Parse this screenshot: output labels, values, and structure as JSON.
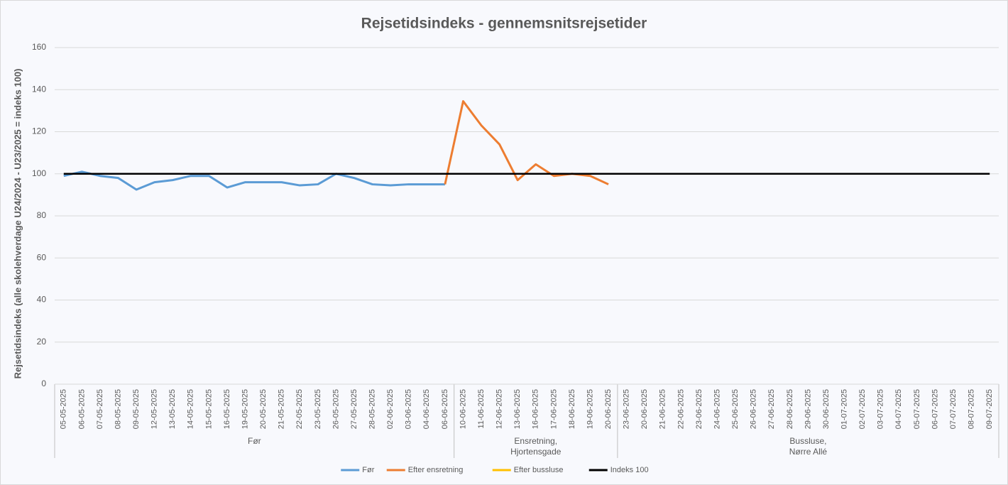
{
  "chart_data": {
    "type": "line",
    "title": "Rejsetidsindeks - gennemsnitsrejsetider",
    "y_label": "Rejsetidsindeks (alle skolehverdage U24/2024 - U23/2025 = indeks 100)",
    "categories": [
      "05-05-2025",
      "06-05-2025",
      "07-05-2025",
      "08-05-2025",
      "09-05-2025",
      "12-05-2025",
      "13-05-2025",
      "14-05-2025",
      "15-05-2025",
      "16-05-2025",
      "19-05-2025",
      "20-05-2025",
      "21-05-2025",
      "22-05-2025",
      "23-05-2025",
      "26-05-2025",
      "27-05-2025",
      "28-05-2025",
      "02-06-2025",
      "03-06-2025",
      "04-06-2025",
      "06-06-2025",
      "10-06-2025",
      "11-06-2025",
      "12-06-2025",
      "13-06-2025",
      "16-06-2025",
      "17-06-2025",
      "18-06-2025",
      "19-06-2025",
      "20-06-2025",
      "23-06-2025",
      "20-06-2025",
      "21-06-2025",
      "22-06-2025",
      "23-06-2025",
      "24-06-2025",
      "25-06-2025",
      "26-06-2025",
      "27-06-2025",
      "28-06-2025",
      "29-06-2025",
      "30-06-2025",
      "01-07-2025",
      "02-07-2025",
      "03-07-2025",
      "04-07-2025",
      "05-07-2025",
      "06-07-2025",
      "07-07-2025",
      "08-07-2025",
      "09-07-2025"
    ],
    "groups": [
      {
        "label": [
          "Før"
        ],
        "count": 22
      },
      {
        "label": [
          "Ensretning,",
          "Hjortensgade"
        ],
        "count": 9
      },
      {
        "label": [
          "Bussluse,",
          "Nørre Allé"
        ],
        "count": 21
      }
    ],
    "series": [
      {
        "name": "Før",
        "color": "#5b9bd5",
        "values": [
          99,
          101,
          99,
          98,
          92.5,
          96,
          97,
          99,
          99,
          93.5,
          96,
          96,
          96,
          94.5,
          95,
          100,
          98,
          95,
          94.5,
          95,
          95,
          95,
          null,
          null,
          null,
          null,
          null,
          null,
          null,
          null,
          null,
          null,
          null,
          null,
          null,
          null,
          null,
          null,
          null,
          null,
          null,
          null,
          null,
          null,
          null,
          null,
          null,
          null,
          null,
          null,
          null,
          null
        ]
      },
      {
        "name": "Efter ensretning",
        "color": "#ed7d31",
        "values": [
          null,
          null,
          null,
          null,
          null,
          null,
          null,
          null,
          null,
          null,
          null,
          null,
          null,
          null,
          null,
          null,
          null,
          null,
          null,
          null,
          null,
          95,
          134.5,
          123,
          114,
          97,
          104.5,
          99,
          100,
          99,
          95,
          null,
          null,
          null,
          null,
          null,
          null,
          null,
          null,
          null,
          null,
          null,
          null,
          null,
          null,
          null,
          null,
          null,
          null,
          null,
          null,
          null
        ]
      },
      {
        "name": "Efter bussluse",
        "color": "#ffc000",
        "values": [
          null,
          null,
          null,
          null,
          null,
          null,
          null,
          null,
          null,
          null,
          null,
          null,
          null,
          null,
          null,
          null,
          null,
          null,
          null,
          null,
          null,
          null,
          null,
          null,
          null,
          null,
          null,
          null,
          null,
          null,
          null,
          null,
          null,
          null,
          null,
          null,
          null,
          null,
          null,
          null,
          null,
          null,
          null,
          null,
          null,
          null,
          null,
          null,
          null,
          null,
          null,
          null
        ]
      },
      {
        "name": "Indeks 100",
        "color": "#000000",
        "values": [
          100,
          100,
          100,
          100,
          100,
          100,
          100,
          100,
          100,
          100,
          100,
          100,
          100,
          100,
          100,
          100,
          100,
          100,
          100,
          100,
          100,
          100,
          100,
          100,
          100,
          100,
          100,
          100,
          100,
          100,
          100,
          100,
          100,
          100,
          100,
          100,
          100,
          100,
          100,
          100,
          100,
          100,
          100,
          100,
          100,
          100,
          100,
          100,
          100,
          100,
          100,
          100
        ]
      }
    ],
    "ylim": [
      0,
      160
    ],
    "yticks": [
      0,
      20,
      40,
      60,
      80,
      100,
      120,
      140,
      160
    ],
    "grid": true,
    "legend": "bottom"
  }
}
